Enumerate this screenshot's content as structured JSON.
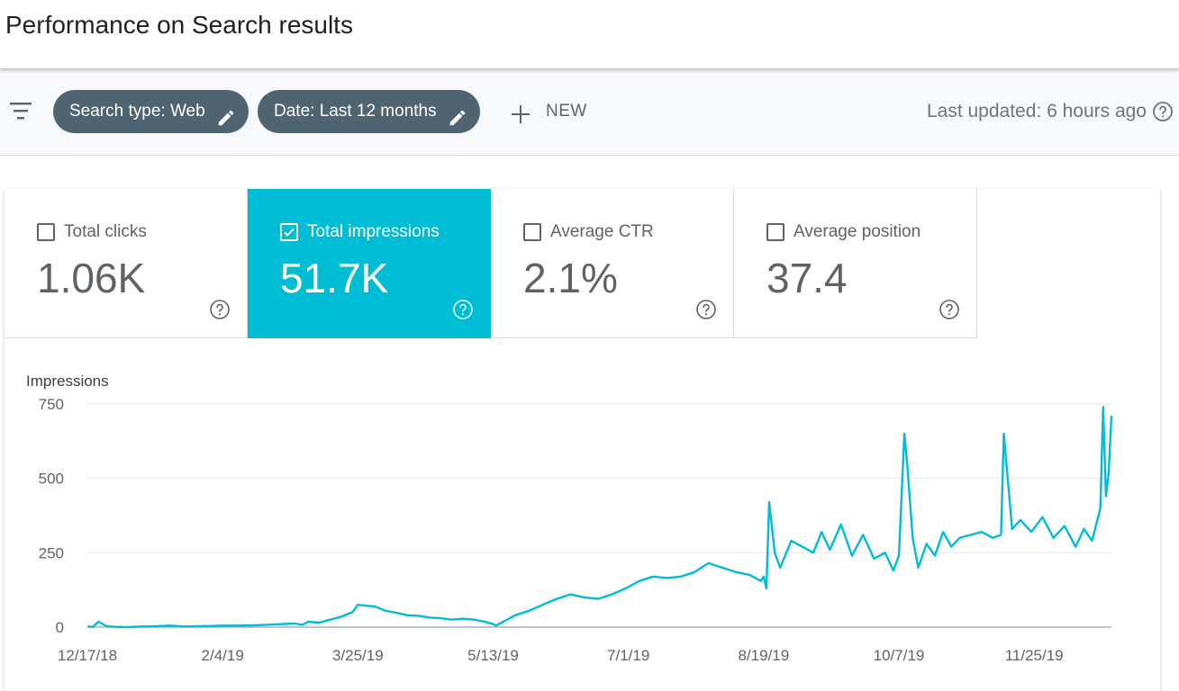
{
  "header": {
    "title": "Performance on Search results"
  },
  "toolbar": {
    "filter_icon": "filter-list-icon",
    "chips": [
      {
        "label": "Search type: Web",
        "icon": "pencil-icon"
      },
      {
        "label": "Date: Last 12 months",
        "icon": "pencil-icon"
      }
    ],
    "new_label": "NEW",
    "last_updated": "Last updated: 6 hours ago",
    "help_icon": "help-circle-icon"
  },
  "metrics": [
    {
      "label": "Total clicks",
      "value": "1.06K",
      "checked": false
    },
    {
      "label": "Total impressions",
      "value": "51.7K",
      "checked": true
    },
    {
      "label": "Average CTR",
      "value": "2.1%",
      "checked": false
    },
    {
      "label": "Average position",
      "value": "37.4",
      "checked": false
    }
  ],
  "colors": {
    "accent": "#00bcd4",
    "chip": "#4f6470",
    "line": "#00bcd4"
  },
  "chart_data": {
    "type": "line",
    "ylabel": "Impressions",
    "ylim": [
      0,
      750
    ],
    "yticks": [
      0,
      250,
      500,
      750
    ],
    "xtick_labels": [
      "12/17/18",
      "2/4/19",
      "3/25/19",
      "5/13/19",
      "7/1/19",
      "8/19/19",
      "10/7/19",
      "11/25/19"
    ],
    "x_start": "2018-12-17",
    "x_end": "2019-12-16",
    "grid": true,
    "series": [
      {
        "color": "#00bcd4",
        "points": [
          [
            0,
            2
          ],
          [
            2,
            1
          ],
          [
            4,
            18
          ],
          [
            7,
            3
          ],
          [
            10,
            1
          ],
          [
            15,
            0
          ],
          [
            20,
            2
          ],
          [
            25,
            3
          ],
          [
            30,
            5
          ],
          [
            35,
            2
          ],
          [
            40,
            3
          ],
          [
            45,
            4
          ],
          [
            49,
            5
          ],
          [
            55,
            5
          ],
          [
            60,
            6
          ],
          [
            65,
            8
          ],
          [
            70,
            10
          ],
          [
            75,
            12
          ],
          [
            78,
            8
          ],
          [
            80,
            18
          ],
          [
            84,
            15
          ],
          [
            88,
            25
          ],
          [
            92,
            35
          ],
          [
            96,
            50
          ],
          [
            98,
            75
          ],
          [
            101,
            72
          ],
          [
            104,
            70
          ],
          [
            108,
            55
          ],
          [
            112,
            48
          ],
          [
            116,
            40
          ],
          [
            120,
            38
          ],
          [
            124,
            32
          ],
          [
            128,
            30
          ],
          [
            132,
            25
          ],
          [
            136,
            28
          ],
          [
            140,
            25
          ],
          [
            144,
            18
          ],
          [
            147,
            10
          ],
          [
            148,
            5
          ],
          [
            151,
            20
          ],
          [
            155,
            40
          ],
          [
            160,
            55
          ],
          [
            165,
            75
          ],
          [
            170,
            95
          ],
          [
            175,
            110
          ],
          [
            180,
            100
          ],
          [
            185,
            95
          ],
          [
            190,
            110
          ],
          [
            195,
            130
          ],
          [
            200,
            155
          ],
          [
            205,
            170
          ],
          [
            210,
            165
          ],
          [
            215,
            170
          ],
          [
            220,
            185
          ],
          [
            225,
            215
          ],
          [
            230,
            200
          ],
          [
            235,
            185
          ],
          [
            240,
            175
          ],
          [
            244,
            155
          ],
          [
            245,
            170
          ],
          [
            246,
            130
          ],
          [
            247,
            420
          ],
          [
            249,
            250
          ],
          [
            251,
            200
          ],
          [
            255,
            290
          ],
          [
            259,
            270
          ],
          [
            263,
            250
          ],
          [
            266,
            320
          ],
          [
            269,
            260
          ],
          [
            273,
            345
          ],
          [
            277,
            240
          ],
          [
            281,
            310
          ],
          [
            285,
            230
          ],
          [
            289,
            250
          ],
          [
            292,
            190
          ],
          [
            294,
            240
          ],
          [
            296,
            650
          ],
          [
            297,
            550
          ],
          [
            299,
            300
          ],
          [
            301,
            200
          ],
          [
            304,
            280
          ],
          [
            307,
            240
          ],
          [
            310,
            320
          ],
          [
            313,
            270
          ],
          [
            316,
            300
          ],
          [
            320,
            310
          ],
          [
            324,
            320
          ],
          [
            328,
            300
          ],
          [
            331,
            310
          ],
          [
            332,
            650
          ],
          [
            335,
            330
          ],
          [
            338,
            360
          ],
          [
            342,
            320
          ],
          [
            346,
            370
          ],
          [
            350,
            300
          ],
          [
            354,
            340
          ],
          [
            358,
            270
          ],
          [
            361,
            330
          ],
          [
            364,
            290
          ],
          [
            367,
            400
          ],
          [
            368,
            740
          ],
          [
            369,
            440
          ],
          [
            370,
            520
          ],
          [
            371,
            710
          ]
        ]
      }
    ]
  }
}
